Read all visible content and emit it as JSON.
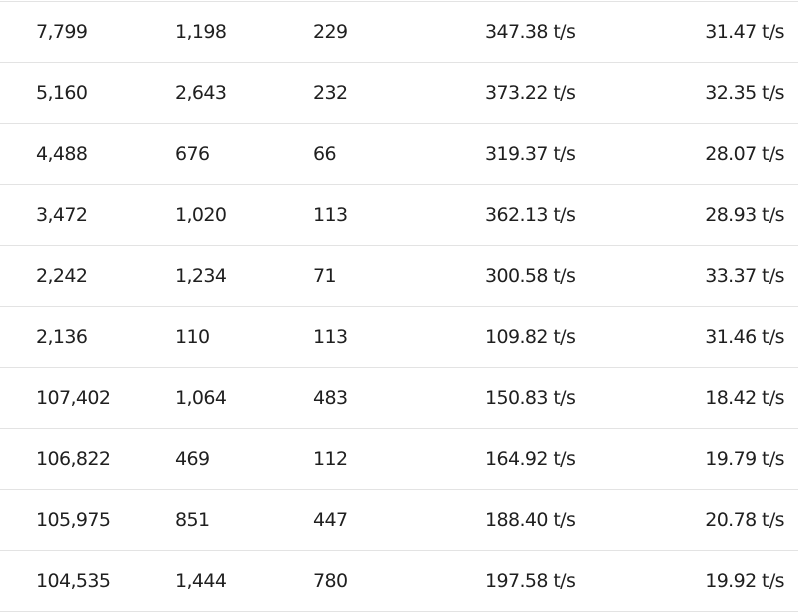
{
  "table": {
    "rows": [
      [
        "7,799",
        "1,198",
        "229",
        "347.38 t/s",
        "31.47 t/s"
      ],
      [
        "5,160",
        "2,643",
        "232",
        "373.22 t/s",
        "32.35 t/s"
      ],
      [
        "4,488",
        "676",
        "66",
        "319.37 t/s",
        "28.07 t/s"
      ],
      [
        "3,472",
        "1,020",
        "113",
        "362.13 t/s",
        "28.93 t/s"
      ],
      [
        "2,242",
        "1,234",
        "71",
        "300.58 t/s",
        "33.37 t/s"
      ],
      [
        "2,136",
        "110",
        "113",
        "109.82 t/s",
        "31.46 t/s"
      ],
      [
        "107,402",
        "1,064",
        "483",
        "150.83 t/s",
        "18.42 t/s"
      ],
      [
        "106,822",
        "469",
        "112",
        "164.92 t/s",
        "19.79 t/s"
      ],
      [
        "105,975",
        "851",
        "447",
        "188.40 t/s",
        "20.78 t/s"
      ],
      [
        "104,535",
        "1,444",
        "780",
        "197.58 t/s",
        "19.92 t/s"
      ]
    ]
  }
}
